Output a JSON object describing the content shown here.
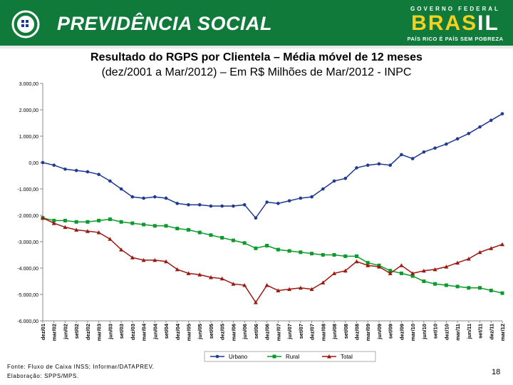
{
  "header": {
    "brand": "PREVIDÊNCIA SOCIAL",
    "gov_top": "GOVERNO FEDERAL",
    "gov_main_left": "BRAS",
    "gov_main_right": "IL",
    "gov_bottom": "PAÍS RICO É PAÍS SEM POBREZA"
  },
  "title": {
    "line1": "Resultado do RGPS por Clientela – Média móvel de 12 meses",
    "line2": "(dez/2001 a Mar/2012) – Em R$ Milhões de Mar/2012 - INPC"
  },
  "footer": {
    "source": "Fonte: Fluxo de Caixa INSS; Informar/DATAPREV.",
    "elaboration": "Elaboração: SPPS/MPS.",
    "page": "18"
  },
  "colors": {
    "urbano": "#1f3a93",
    "rural": "#0c9a2a",
    "total": "#9a1a12"
  },
  "chart_data": {
    "type": "line",
    "x": [
      "dez/01",
      "mar/02",
      "jun/02",
      "set/02",
      "dez/02",
      "mar/03",
      "jun/03",
      "set/03",
      "dez/03",
      "mar/04",
      "jun/04",
      "set/04",
      "dez/04",
      "mar/05",
      "jun/05",
      "set/05",
      "dez/05",
      "mar/06",
      "jun/06",
      "set/06",
      "dez/06",
      "mar/07",
      "jun/07",
      "set/07",
      "dez/07",
      "mar/08",
      "jun/08",
      "set/08",
      "dez/08",
      "mar/09",
      "jun/09",
      "set/09",
      "dez/09",
      "mar/10",
      "jun/10",
      "set/10",
      "dez/10",
      "mar/11",
      "jun/11",
      "set/11",
      "dez/11",
      "mar/12"
    ],
    "ylim": [
      -6000,
      3000
    ],
    "yticks": [
      3000,
      2000,
      1000,
      0,
      -1000,
      -2000,
      -3000,
      -4000,
      -5000,
      -6000
    ],
    "ytick_labels": [
      "3.000,00",
      "2.000,00",
      "1.000,00",
      "0,00",
      "-1.000,00",
      "-2.000,00",
      "-3.000,00",
      "-4.000,00",
      "-5.000,00",
      "-6.000,00"
    ],
    "legend": "bottom",
    "series": [
      {
        "name": "Urbano",
        "values": [
          0,
          -100,
          -250,
          -300,
          -350,
          -450,
          -700,
          -1000,
          -1300,
          -1350,
          -1300,
          -1350,
          -1550,
          -1600,
          -1600,
          -1650,
          -1650,
          -1650,
          -1600,
          -2100,
          -1500,
          -1550,
          -1450,
          -1350,
          -1300,
          -1000,
          -700,
          -600,
          -200,
          -100,
          -50,
          -100,
          300,
          150,
          400,
          550,
          700,
          900,
          1100,
          1350,
          1600,
          1850
        ]
      },
      {
        "name": "Rural",
        "values": [
          -2100,
          -2200,
          -2200,
          -2250,
          -2250,
          -2200,
          -2150,
          -2250,
          -2300,
          -2350,
          -2400,
          -2400,
          -2500,
          -2550,
          -2650,
          -2750,
          -2850,
          -2950,
          -3050,
          -3250,
          -3150,
          -3300,
          -3350,
          -3400,
          -3450,
          -3500,
          -3500,
          -3550,
          -3550,
          -3800,
          -3900,
          -4100,
          -4200,
          -4300,
          -4500,
          -4600,
          -4650,
          -4700,
          -4750,
          -4750,
          -4850,
          -4950
        ]
      },
      {
        "name": "Total",
        "values": [
          -2100,
          -2300,
          -2450,
          -2550,
          -2600,
          -2650,
          -2900,
          -3300,
          -3600,
          -3700,
          -3700,
          -3750,
          -4050,
          -4200,
          -4250,
          -4350,
          -4400,
          -4600,
          -4650,
          -5300,
          -4650,
          -4850,
          -4800,
          -4750,
          -4800,
          -4550,
          -4200,
          -4100,
          -3750,
          -3900,
          -3950,
          -4200,
          -3900,
          -4200,
          -4100,
          -4050,
          -3950,
          -3800,
          -3650,
          -3400,
          -3250,
          -3100
        ]
      }
    ]
  }
}
